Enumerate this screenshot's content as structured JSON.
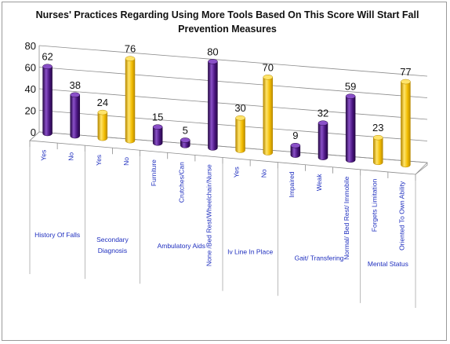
{
  "colors": {
    "purple": "#4a1580",
    "purple_light": "#8a50c8",
    "purple_dark": "#260845",
    "gold": "#f2bc00",
    "gold_light": "#ffe46a",
    "gold_dark": "#b88a00",
    "category_label": "#1f2fbf",
    "grid": "#8c8c8c"
  },
  "chart_data": {
    "type": "bar",
    "style": "3d-cylinder",
    "title": "Nurses' Practices Regarding Using More Tools Based On This Score Will Start Fall Prevention Measures",
    "ylim": [
      0,
      80
    ],
    "yticks": [
      0,
      20,
      40,
      60,
      80
    ],
    "grid": true,
    "legend": "none",
    "categories": [
      "Yes",
      "No",
      "Yes",
      "No",
      "Furniture",
      "Crutches/Can",
      "None /Bed Rest/Wheelchair/Nurse",
      "Yes",
      "No",
      "Impaired",
      "Weak",
      "Normal/ Bed Rest/ Immobile",
      "Forgets Limitation",
      "Oriented To Own Ability"
    ],
    "values": [
      62,
      38,
      24,
      76,
      15,
      5,
      80,
      30,
      70,
      9,
      32,
      59,
      23,
      77
    ],
    "bar_colors": [
      "purple",
      "purple",
      "gold",
      "gold",
      "purple",
      "purple",
      "purple",
      "gold",
      "gold",
      "purple",
      "purple",
      "purple",
      "gold",
      "gold"
    ],
    "groups": [
      {
        "label": "History Of Falls",
        "span": [
          0,
          1
        ]
      },
      {
        "label": "Secondary Diagnosis",
        "span": [
          2,
          3
        ]
      },
      {
        "label": "Ambulatory Aids",
        "span": [
          4,
          6
        ]
      },
      {
        "label": "Iv Line In Place",
        "span": [
          7,
          8
        ]
      },
      {
        "label": "Gait/ Transfering",
        "span": [
          9,
          11
        ]
      },
      {
        "label": "Mental Status",
        "span": [
          12,
          13
        ]
      }
    ]
  }
}
